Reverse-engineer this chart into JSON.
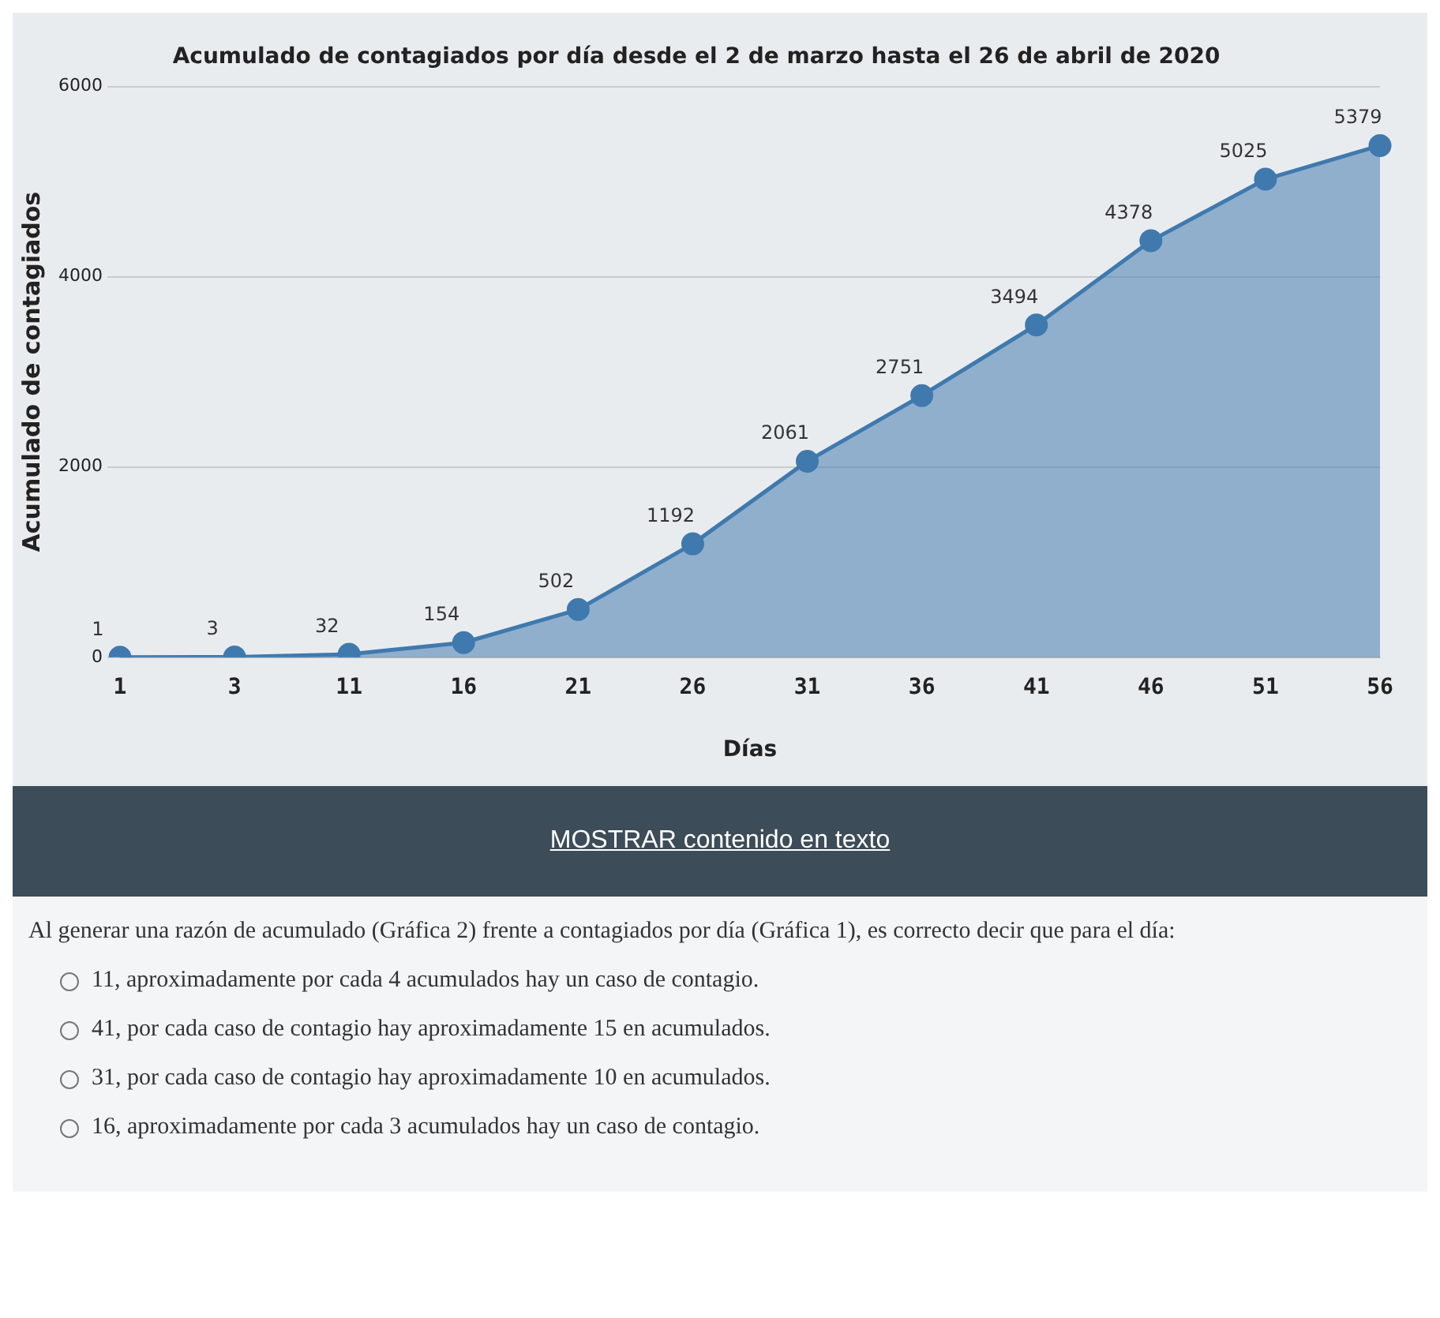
{
  "chart_data": {
    "type": "area",
    "title": "Acumulado de contagiados por día desde el 2 de marzo hasta el 26 de abril de 2020",
    "xlabel": "Días",
    "ylabel": "Acumulado de contagiados",
    "categories": [
      "1",
      "3",
      "11",
      "16",
      "21",
      "26",
      "31",
      "36",
      "41",
      "46",
      "51",
      "56"
    ],
    "series": [
      {
        "color": "#3f79ae",
        "values": [
          1,
          3,
          32,
          154,
          502,
          1192,
          2061,
          2751,
          3494,
          4378,
          5025,
          5379
        ]
      }
    ],
    "ylim": [
      0,
      6000
    ],
    "yticks": [
      0,
      2000,
      4000,
      6000
    ],
    "grid": "y",
    "legend": false,
    "marker": "circle",
    "line_style": "solid",
    "data_labels": true,
    "annotations": [
      "MOSTRAR contenido en texto",
      "Al generar una razón de acumulado (Gráfica 2) frente a contagiados por día (Gráfica 1), es correcto decir que para el día:",
      "11, aproximadamente por cada 4 acumulados hay un caso de contagio.",
      "41, por cada caso de contagio hay aproximadamente 15 en acumulados.",
      "31, por cada caso de contagio hay aproximadamente 10 en acumulados.",
      "16, aproximadamente por cada 3 acumulados hay un caso de contagio."
    ]
  }
}
